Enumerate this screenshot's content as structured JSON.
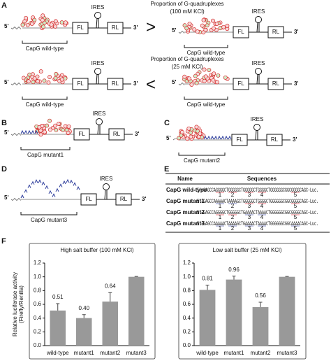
{
  "panels": {
    "a": "A",
    "b": "B",
    "c": "C",
    "d": "D",
    "e": "E",
    "f": "F"
  },
  "reporter": {
    "five_prime": "5'",
    "three_prime": "3'",
    "fl": "FL",
    "rl": "RL",
    "ires": "IRES"
  },
  "panel_a": {
    "rows": [
      {
        "caption": "Proportion of G-quadruplexes",
        "condition": "(100 mM KCl)",
        "comparison": ">",
        "left": "CapG wild-type",
        "right": "CapG wild-type"
      },
      {
        "caption": "Proportion of G-quadruplexes",
        "condition": "(25 mM KCl)",
        "comparison": "<",
        "left": "CapG wild-type",
        "right": "CapG wild-type"
      }
    ]
  },
  "constructs": {
    "b": "CapG mutant1",
    "c": "CapG mutant2",
    "d": "CapG mutant3"
  },
  "table": {
    "header": [
      "Name",
      "Sequences"
    ],
    "rows": [
      {
        "name": "CapG wild-type",
        "segments": [
          {
            "text": "5'–GAGCCA",
            "color": "#555555"
          },
          {
            "text": "GGGG",
            "color": "#e0202a",
            "tract": "1"
          },
          {
            "text": "CT",
            "color": "#555555"
          },
          {
            "text": "GGGG",
            "color": "#e0202a",
            "tract": "2"
          },
          {
            "text": "GCTG",
            "color": "#555555"
          },
          {
            "text": "GGGG",
            "color": "#e0202a",
            "tract": "3"
          },
          {
            "text": "CT",
            "color": "#555555"
          },
          {
            "text": "GGGG",
            "color": "#e0202a",
            "tract": "4"
          },
          {
            "text": "CTGGGGGGCGGC",
            "color": "#555555"
          },
          {
            "text": "GGGG",
            "color": "#e0202a",
            "tract": "5"
          },
          {
            "text": "CAGC–Luc.",
            "color": "#555555"
          }
        ]
      },
      {
        "name": "CapG mutant1",
        "segments": [
          {
            "text": "5'–GAGCCA",
            "color": "#555555"
          },
          {
            "text": "AAAA",
            "color": "#2a3a9a",
            "tract": "1"
          },
          {
            "text": "CT",
            "color": "#555555"
          },
          {
            "text": "AAAA",
            "color": "#2a3a9a",
            "tract": "2"
          },
          {
            "text": "GCTG",
            "color": "#555555"
          },
          {
            "text": "GGGG",
            "color": "#e0202a",
            "tract": "3"
          },
          {
            "text": "CT",
            "color": "#555555"
          },
          {
            "text": "GGGG",
            "color": "#e0202a",
            "tract": "4"
          },
          {
            "text": "CTGGGGGGCGGC",
            "color": "#555555"
          },
          {
            "text": "GGGG",
            "color": "#e0202a",
            "tract": "5"
          },
          {
            "text": "CAGC–Luc.",
            "color": "#555555"
          }
        ]
      },
      {
        "name": "CapG mutant2",
        "segments": [
          {
            "text": "5'–GAGCCA",
            "color": "#555555"
          },
          {
            "text": "GGGG",
            "color": "#e0202a",
            "tract": "1"
          },
          {
            "text": "CT",
            "color": "#555555"
          },
          {
            "text": "GGGG",
            "color": "#e0202a",
            "tract": "2"
          },
          {
            "text": "GCTG",
            "color": "#555555"
          },
          {
            "text": "AAAA",
            "color": "#2a3a9a",
            "tract": "3"
          },
          {
            "text": "CT",
            "color": "#555555"
          },
          {
            "text": "AAAA",
            "color": "#2a3a9a",
            "tract": "4"
          },
          {
            "text": "CTGGGGGGCGGC",
            "color": "#555555"
          },
          {
            "text": "GGGG",
            "color": "#e0202a",
            "tract": "5"
          },
          {
            "text": "CAGC–Luc.",
            "color": "#555555"
          }
        ]
      },
      {
        "name": "CapG mutant3",
        "segments": [
          {
            "text": "5'–GAGCCA",
            "color": "#555555"
          },
          {
            "text": "AAAA",
            "color": "#2a3a9a",
            "tract": "1"
          },
          {
            "text": "CT",
            "color": "#555555"
          },
          {
            "text": "AAAA",
            "color": "#2a3a9a",
            "tract": "2"
          },
          {
            "text": "GCTG",
            "color": "#555555"
          },
          {
            "text": "AAAA",
            "color": "#2a3a9a",
            "tract": "3"
          },
          {
            "text": "CT",
            "color": "#555555"
          },
          {
            "text": "AAAA",
            "color": "#2a3a9a",
            "tract": "4"
          },
          {
            "text": "CTGGGGGGCGGC",
            "color": "#555555"
          },
          {
            "text": "AAAA",
            "color": "#2a3a9a",
            "tract": "5"
          },
          {
            "text": "CAGC–Luc.",
            "color": "#555555"
          }
        ]
      }
    ]
  },
  "chart_data": [
    {
      "type": "bar",
      "title": "High salt buffer (100 mM KCl)",
      "ylabel": [
        "Relative luciferase activity",
        "(Firefly/Renilla)"
      ],
      "categories": [
        "wild-type",
        "mutant1",
        "mutant2",
        "mutant3"
      ],
      "values": [
        0.51,
        0.4,
        0.64,
        1.0
      ],
      "value_labels": [
        "0.51",
        "0.40",
        "0.64",
        null
      ],
      "errors": [
        0.1,
        0.05,
        0.13,
        0.005
      ],
      "color": "#999999",
      "ylim": [
        0,
        1.2
      ],
      "yticks": [
        {
          "value": 0,
          "label": "0.0"
        },
        {
          "value": 0.2,
          "label": "0.2"
        },
        {
          "value": 0.4,
          "label": "0.4"
        },
        {
          "value": 0.6,
          "label": "0.6"
        },
        {
          "value": 0.8,
          "label": "0.8"
        },
        {
          "value": 1,
          "label": "1.0"
        },
        {
          "value": 1.2,
          "label": "1.2"
        }
      ]
    },
    {
      "type": "bar",
      "title": "Low salt buffer (25 mM KCl)",
      "categories": [
        "wild-type",
        "mutant1",
        "mutant2",
        "mutant3"
      ],
      "values": [
        0.81,
        0.96,
        0.56,
        1.0
      ],
      "value_labels": [
        "0.81",
        "0.96",
        "0.56",
        null
      ],
      "errors": [
        0.07,
        0.05,
        0.07,
        0.005
      ],
      "color": "#999999",
      "ylim": [
        0,
        1.2
      ],
      "yticks": [
        {
          "value": 0,
          "label": "0.0"
        },
        {
          "value": 0.2,
          "label": "0.2"
        },
        {
          "value": 0.4,
          "label": "0.4"
        },
        {
          "value": 0.6,
          "label": "0.6"
        },
        {
          "value": 0.8,
          "label": "0.8"
        },
        {
          "value": 1,
          "label": "1.0"
        },
        {
          "value": 1.2,
          "label": "1.2"
        }
      ]
    }
  ]
}
